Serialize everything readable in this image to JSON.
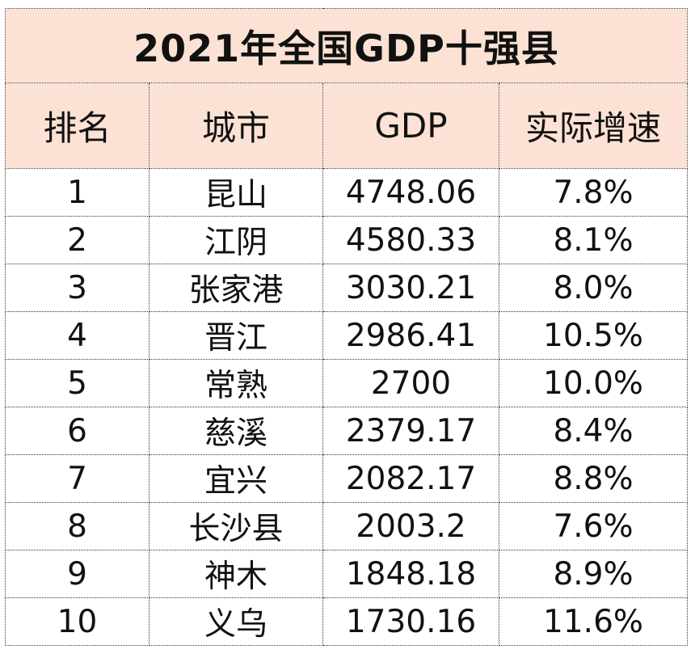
{
  "colors": {
    "header_background": "#fbe2d4",
    "body_background": "#ffffff",
    "grid_line": "#333333",
    "text": "#111111"
  },
  "chart_data": {
    "type": "table",
    "title": "2021年全国GDP十强县",
    "columns": [
      "排名",
      "城市",
      "GDP",
      "实际增速"
    ],
    "rows": [
      [
        "1",
        "昆山",
        "4748.06",
        "7.8%"
      ],
      [
        "2",
        "江阴",
        "4580.33",
        "8.1%"
      ],
      [
        "3",
        "张家港",
        "3030.21",
        "8.0%"
      ],
      [
        "4",
        "晋江",
        "2986.41",
        "10.5%"
      ],
      [
        "5",
        "常熟",
        "2700",
        "10.0%"
      ],
      [
        "6",
        "慈溪",
        "2379.17",
        "8.4%"
      ],
      [
        "7",
        "宜兴",
        "2082.17",
        "8.8%"
      ],
      [
        "8",
        "长沙县",
        "2003.2",
        "7.6%"
      ],
      [
        "9",
        "神木",
        "1848.18",
        "8.9%"
      ],
      [
        "10",
        "义乌",
        "1730.16",
        "11.6%"
      ]
    ]
  }
}
